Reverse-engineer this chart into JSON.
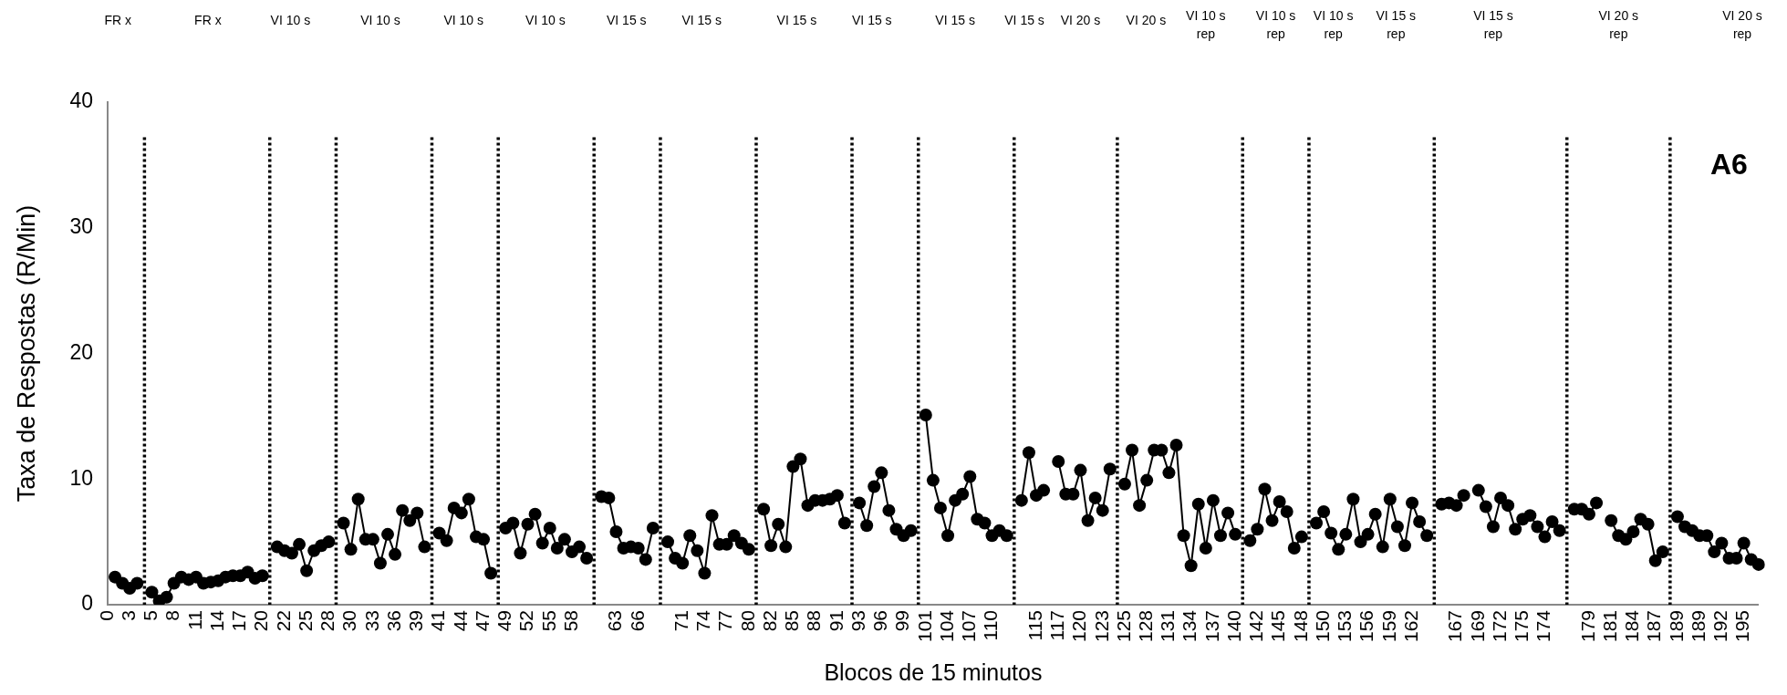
{
  "chart_data": {
    "type": "line",
    "xlabel": "Blocos de 15 minutos",
    "ylabel": "Taxa de Respostas (R/Min)",
    "categories": [
      "0",
      null,
      null,
      "3",
      null,
      null,
      "5",
      null,
      null,
      "8",
      null,
      null,
      "11",
      null,
      null,
      "14",
      null,
      null,
      "17",
      null,
      null,
      "20",
      null,
      null,
      "22",
      null,
      null,
      "25",
      null,
      null,
      "28",
      null,
      null,
      "30",
      null,
      null,
      "33",
      null,
      null,
      "36",
      null,
      null,
      "39",
      null,
      null,
      "41",
      null,
      null,
      "44",
      null,
      null,
      "47",
      null,
      null,
      "49",
      null,
      null,
      "52",
      null,
      null,
      "55",
      null,
      null,
      "58",
      null,
      null,
      null,
      null,
      null,
      "63",
      null,
      null,
      "66",
      null,
      null,
      null,
      null,
      null,
      "71",
      null,
      null,
      "74",
      null,
      null,
      "77",
      null,
      null,
      "80",
      null,
      null,
      "82",
      null,
      null,
      "85",
      null,
      null,
      "88",
      null,
      null,
      "91",
      null,
      null,
      "93",
      null,
      null,
      "96",
      null,
      null,
      "99",
      null,
      null,
      "101",
      null,
      null,
      "104",
      null,
      null,
      "107",
      null,
      null,
      "110",
      null,
      null,
      null,
      null,
      null,
      "115",
      null,
      null,
      "117",
      null,
      null,
      "120",
      null,
      null,
      "123",
      null,
      null,
      "125",
      null,
      null,
      "128",
      null,
      null,
      "131",
      null,
      null,
      "134",
      null,
      null,
      "137",
      null,
      null,
      "140",
      null,
      null,
      "142",
      null,
      null,
      "145",
      null,
      null,
      "148",
      null,
      null,
      "150",
      null,
      null,
      "153",
      null,
      null,
      "156",
      null,
      null,
      "159",
      null,
      null,
      "162",
      null,
      null,
      null,
      null,
      null,
      "167",
      null,
      null,
      "169",
      null,
      null,
      "172",
      null,
      null,
      "175",
      null,
      null,
      "174",
      null,
      null,
      null,
      null,
      null,
      "179",
      null,
      null,
      "181",
      null,
      null,
      "184",
      null,
      null,
      "187",
      null,
      null,
      "189",
      null,
      null,
      "189",
      null,
      null,
      "192",
      null,
      null,
      "195",
      null,
      null
    ],
    "series": [
      {
        "color": "#000000",
        "values": [
          null,
          2.2,
          1.7,
          1.3,
          1.7,
          null,
          1.0,
          0.3,
          0.6,
          1.7,
          2.2,
          2.0,
          2.2,
          1.7,
          1.8,
          1.9,
          2.2,
          2.3,
          2.3,
          2.6,
          2.1,
          2.3,
          null,
          4.6,
          4.3,
          4.1,
          4.8,
          2.7,
          4.3,
          4.7,
          5.0,
          null,
          6.5,
          4.4,
          8.4,
          5.2,
          5.2,
          3.3,
          5.6,
          4.0,
          7.5,
          6.7,
          7.3,
          4.6,
          null,
          5.7,
          5.1,
          7.7,
          7.3,
          8.4,
          5.4,
          5.2,
          2.5,
          null,
          6.1,
          6.5,
          4.1,
          6.4,
          7.2,
          4.9,
          6.1,
          4.5,
          5.2,
          4.2,
          4.6,
          3.7,
          null,
          8.6,
          8.5,
          5.8,
          4.5,
          4.6,
          4.5,
          3.6,
          6.1,
          null,
          5.0,
          3.7,
          3.3,
          5.5,
          4.3,
          2.5,
          7.1,
          4.8,
          4.8,
          5.5,
          4.9,
          4.4,
          null,
          7.6,
          4.7,
          6.4,
          4.6,
          11.0,
          11.6,
          7.9,
          8.3,
          8.3,
          8.4,
          8.7,
          6.5,
          null,
          8.1,
          6.3,
          9.4,
          10.5,
          7.5,
          6.0,
          5.5,
          5.9,
          null,
          15.1,
          9.9,
          7.7,
          5.5,
          8.3,
          8.8,
          10.2,
          6.8,
          6.5,
          5.5,
          5.9,
          5.5,
          null,
          8.3,
          12.1,
          8.7,
          9.1,
          null,
          11.4,
          8.8,
          8.8,
          10.7,
          6.7,
          8.5,
          7.5,
          10.8,
          null,
          9.6,
          12.3,
          7.9,
          9.9,
          12.3,
          12.3,
          10.5,
          12.7,
          5.5,
          3.1,
          8.0,
          4.5,
          8.3,
          5.5,
          7.3,
          5.6,
          null,
          5.1,
          6.0,
          9.2,
          6.7,
          8.2,
          7.4,
          4.5,
          5.4,
          null,
          6.5,
          7.4,
          5.7,
          4.4,
          5.6,
          8.4,
          5.0,
          5.6,
          7.2,
          4.6,
          8.4,
          6.2,
          4.7,
          8.1,
          6.6,
          5.5,
          null,
          8.0,
          8.1,
          7.9,
          8.7,
          null,
          9.1,
          7.8,
          6.2,
          8.5,
          7.9,
          6.0,
          6.8,
          7.1,
          6.2,
          5.4,
          6.6,
          5.9,
          null,
          7.6,
          7.6,
          7.2,
          8.1,
          null,
          6.7,
          5.5,
          5.2,
          5.8,
          6.8,
          6.4,
          3.5,
          4.2,
          null,
          7.0,
          6.2,
          5.9,
          5.5,
          5.5,
          4.2,
          4.9,
          3.7,
          3.7,
          4.9,
          3.6,
          3.2
        ]
      }
    ],
    "ylim": [
      0,
      40
    ],
    "yticks": [
      0,
      10,
      20,
      30,
      40
    ],
    "grid": false,
    "legend": false,
    "marker": "circle",
    "line_style": "solid",
    "annotations": [
      "FR x",
      "FR x",
      "VI 10 s",
      "VI 10 s",
      "VI 10 s",
      "VI 10 s",
      "VI 15 s",
      "VI 15 s",
      "VI 15 s",
      "VI 15 s",
      "VI 15 s",
      "VI 15 s",
      "VI 20 s",
      "VI 20 s",
      "VI 10 s rep",
      "VI 10 s rep",
      "VI 10 s rep",
      "VI 15 s rep",
      "VI 15 s rep",
      "VI 20 s rep",
      "VI 20 s rep",
      "A6"
    ]
  }
}
